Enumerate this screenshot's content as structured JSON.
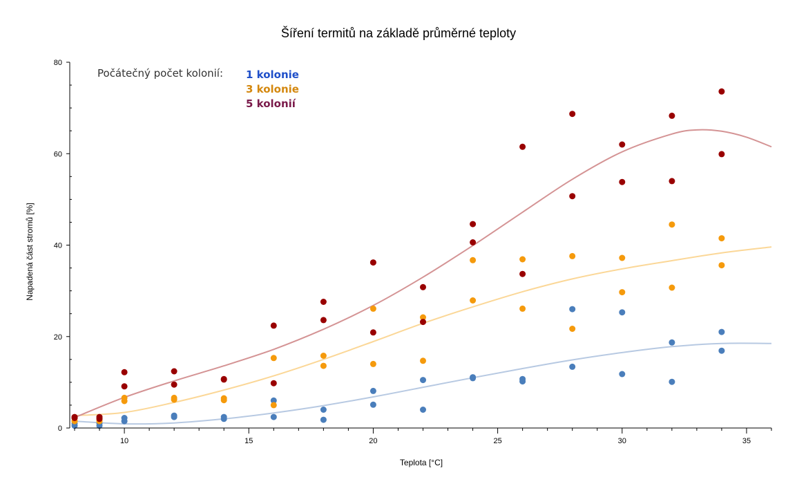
{
  "chart_data": {
    "type": "scatter",
    "title": "Šíření termitů na základě průměrné teploty",
    "xlabel": "Teplota [°C]",
    "ylabel": "Napadená část stromů [%]",
    "xlim": [
      8,
      36
    ],
    "ylim": [
      0,
      80
    ],
    "x_ticks": [
      10,
      15,
      20,
      25,
      30,
      35
    ],
    "y_ticks": [
      0,
      20,
      40,
      60,
      80
    ],
    "x_ticks_text": [
      "10",
      "15",
      "20",
      "25",
      "30",
      "35"
    ],
    "y_ticks_text": [
      "0",
      "20",
      "40",
      "60",
      "80"
    ],
    "grid": false,
    "legend": {
      "title": "Počátečný počet kolonií:",
      "placement": "top-left",
      "entries": [
        {
          "label": "1 kolonie",
          "color": "#1f4fc9"
        },
        {
          "label": "3 kolonie",
          "color": "#d4880f"
        },
        {
          "label": "5 kolonií",
          "color": "#7a1a4a"
        }
      ]
    },
    "series": [
      {
        "name": "1 kolonie",
        "color": "#4a7ebb",
        "trend_color": "#b7c9e2",
        "points": [
          [
            8,
            0.5
          ],
          [
            8,
            1.0
          ],
          [
            9,
            0.5
          ],
          [
            9,
            1.0
          ],
          [
            10,
            1.5
          ],
          [
            10,
            2.2
          ],
          [
            12,
            2.4
          ],
          [
            12,
            2.7
          ],
          [
            14,
            2.0
          ],
          [
            14,
            2.4
          ],
          [
            16,
            2.4
          ],
          [
            16,
            6.0
          ],
          [
            18,
            1.8
          ],
          [
            18,
            4.0
          ],
          [
            20,
            5.1
          ],
          [
            20,
            8.1
          ],
          [
            22,
            4.0
          ],
          [
            22,
            10.5
          ],
          [
            24,
            10.9
          ],
          [
            24,
            11.1
          ],
          [
            26,
            10.2
          ],
          [
            26,
            10.7
          ],
          [
            28,
            13.4
          ],
          [
            28,
            26.0
          ],
          [
            30,
            11.8
          ],
          [
            30,
            25.3
          ],
          [
            32,
            10.1
          ],
          [
            32,
            18.7
          ],
          [
            34,
            16.9
          ],
          [
            34,
            21.0
          ]
        ],
        "trend": [
          [
            8,
            1.5
          ],
          [
            10,
            0.9
          ],
          [
            12,
            1.1
          ],
          [
            14,
            2.0
          ],
          [
            16,
            3.3
          ],
          [
            18,
            4.9
          ],
          [
            20,
            6.8
          ],
          [
            22,
            8.9
          ],
          [
            24,
            11.0
          ],
          [
            26,
            13.0
          ],
          [
            28,
            14.9
          ],
          [
            30,
            16.5
          ],
          [
            32,
            17.8
          ],
          [
            34,
            18.5
          ],
          [
            36,
            18.5
          ]
        ]
      },
      {
        "name": "3 kolonie",
        "color": "#f59a0c",
        "trend_color": "#fbd797",
        "points": [
          [
            8,
            1.5
          ],
          [
            8,
            2.2
          ],
          [
            9,
            1.5
          ],
          [
            9,
            2.0
          ],
          [
            10,
            5.9
          ],
          [
            10,
            6.6
          ],
          [
            12,
            6.2
          ],
          [
            12,
            6.6
          ],
          [
            14,
            6.1
          ],
          [
            14,
            6.5
          ],
          [
            16,
            5.0
          ],
          [
            16,
            15.3
          ],
          [
            18,
            13.6
          ],
          [
            18,
            15.8
          ],
          [
            20,
            14.0
          ],
          [
            20,
            26.1
          ],
          [
            22,
            14.7
          ],
          [
            22,
            24.2
          ],
          [
            24,
            27.9
          ],
          [
            24,
            36.7
          ],
          [
            26,
            26.1
          ],
          [
            26,
            36.9
          ],
          [
            28,
            21.7
          ],
          [
            28,
            37.6
          ],
          [
            30,
            29.7
          ],
          [
            30,
            37.2
          ],
          [
            32,
            30.7
          ],
          [
            32,
            44.5
          ],
          [
            34,
            35.6
          ],
          [
            34,
            41.5
          ]
        ],
        "trend": [
          [
            8,
            2.7
          ],
          [
            10,
            3.4
          ],
          [
            12,
            5.6
          ],
          [
            14,
            8.3
          ],
          [
            16,
            11.4
          ],
          [
            18,
            15.0
          ],
          [
            20,
            18.9
          ],
          [
            22,
            22.9
          ],
          [
            24,
            26.5
          ],
          [
            26,
            29.8
          ],
          [
            28,
            32.6
          ],
          [
            30,
            34.8
          ],
          [
            32,
            36.6
          ],
          [
            34,
            38.3
          ],
          [
            36,
            39.6
          ]
        ]
      },
      {
        "name": "5 kolonií",
        "color": "#990000",
        "trend_color": "#d49394",
        "points": [
          [
            8,
            2.2
          ],
          [
            8,
            2.4
          ],
          [
            9,
            2.0
          ],
          [
            9,
            2.4
          ],
          [
            10,
            9.1
          ],
          [
            10,
            12.2
          ],
          [
            12,
            9.5
          ],
          [
            12,
            12.4
          ],
          [
            14,
            10.6
          ],
          [
            14,
            10.7
          ],
          [
            16,
            9.8
          ],
          [
            16,
            22.4
          ],
          [
            18,
            23.6
          ],
          [
            18,
            27.6
          ],
          [
            20,
            20.9
          ],
          [
            20,
            36.2
          ],
          [
            22,
            23.2
          ],
          [
            22,
            30.8
          ],
          [
            24,
            40.6
          ],
          [
            24,
            44.6
          ],
          [
            26,
            33.7
          ],
          [
            26,
            61.5
          ],
          [
            28,
            50.7
          ],
          [
            28,
            68.7
          ],
          [
            30,
            53.8
          ],
          [
            30,
            62.0
          ],
          [
            32,
            54.0
          ],
          [
            32,
            68.3
          ],
          [
            34,
            59.9
          ],
          [
            34,
            73.6
          ]
        ],
        "trend": [
          [
            8,
            2.3
          ],
          [
            10,
            6.7
          ],
          [
            12,
            10.3
          ],
          [
            14,
            13.6
          ],
          [
            16,
            17.2
          ],
          [
            18,
            21.6
          ],
          [
            20,
            26.8
          ],
          [
            22,
            33.0
          ],
          [
            24,
            39.9
          ],
          [
            26,
            47.2
          ],
          [
            28,
            54.4
          ],
          [
            30,
            60.4
          ],
          [
            32,
            64.3
          ],
          [
            33,
            65.2
          ],
          [
            34,
            64.9
          ],
          [
            35,
            63.6
          ],
          [
            36,
            61.5
          ]
        ]
      }
    ]
  }
}
